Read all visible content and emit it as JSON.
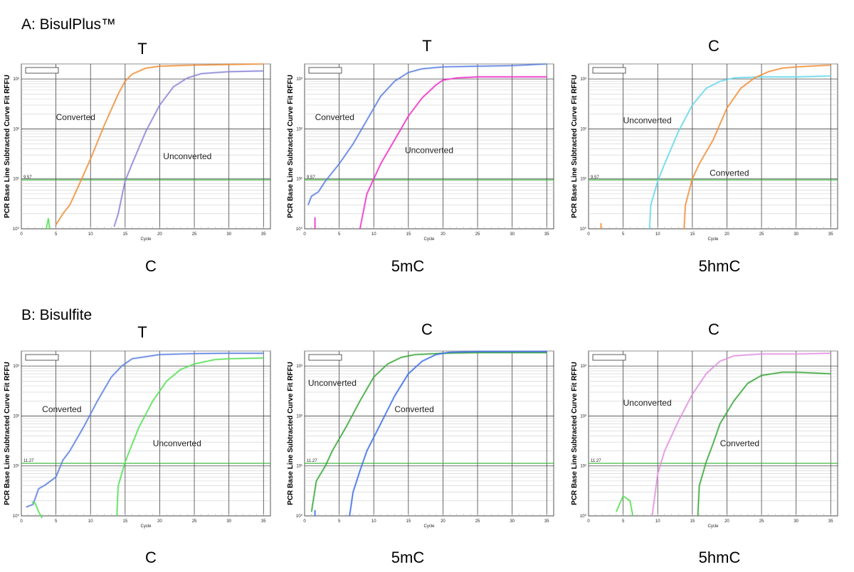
{
  "sections": [
    {
      "title": "A: BisulPlus™"
    },
    {
      "title": "B: Bisulfite"
    }
  ],
  "colors": {
    "orange": "#f0903a",
    "violet_blue": "#8a84d6",
    "blue": "#5b7fe0",
    "magenta": "#ee30c8",
    "cyan": "#66d8ea",
    "green_light": "#55e055",
    "green_dark": "#3aa63a",
    "blue_bright": "#3d6ee8",
    "pink": "#e090e0",
    "threshold": "#2fb52f"
  },
  "chart_data": [
    {
      "type": "line",
      "top_label": "T",
      "bottom_label": "C",
      "ylabel": "PCR Base Line Subtracted Curve Fit RFFU",
      "xlabel": "Cycle",
      "y_scale": "log",
      "xlim": [
        0,
        36
      ],
      "ylim": [
        1,
        2000
      ],
      "x_ticks": [
        "0",
        "5",
        "10",
        "15",
        "20",
        "25",
        "30",
        "35"
      ],
      "y_ticks": [
        "10⁰",
        "10¹",
        "10²",
        "10³"
      ],
      "threshold": {
        "value": 9.57,
        "label": "9.57"
      },
      "series": [
        {
          "color": "orange",
          "points": [
            [
              5,
              1.2
            ],
            [
              6,
              2
            ],
            [
              7,
              3
            ],
            [
              8,
              6
            ],
            [
              10,
              25
            ],
            [
              12,
              120
            ],
            [
              14,
              500
            ],
            [
              15,
              900
            ],
            [
              16,
              1250
            ],
            [
              18,
              1650
            ],
            [
              20,
              1800
            ],
            [
              25,
              1900
            ],
            [
              30,
              1950
            ],
            [
              35,
              2000
            ]
          ]
        },
        {
          "color": "violet_blue",
          "points": [
            [
              13.4,
              1.1
            ],
            [
              14,
              2
            ],
            [
              15,
              9
            ],
            [
              16,
              20
            ],
            [
              18,
              90
            ],
            [
              20,
              300
            ],
            [
              22,
              700
            ],
            [
              24,
              1050
            ],
            [
              26,
              1280
            ],
            [
              30,
              1400
            ],
            [
              35,
              1450
            ]
          ]
        },
        {
          "color": "green_light",
          "points": [
            [
              3.6,
              1
            ],
            [
              3.9,
              1.6
            ],
            [
              4.1,
              1
            ]
          ]
        }
      ],
      "annotations": [
        {
          "text": "Converted",
          "x": 5.0,
          "y": 150
        },
        {
          "text": "Unconverted",
          "x": 20.5,
          "y": 25
        }
      ]
    },
    {
      "type": "line",
      "top_label": "T",
      "bottom_label": "5mC",
      "ylabel": "PCR Base Line Subtracted Curve Fit RFFU",
      "xlabel": "Cycle",
      "y_scale": "log",
      "xlim": [
        0,
        36
      ],
      "ylim": [
        1,
        2000
      ],
      "x_ticks": [
        "0",
        "5",
        "10",
        "15",
        "20",
        "25",
        "30",
        "35"
      ],
      "y_ticks": [
        "10⁰",
        "10¹",
        "10²",
        "10³"
      ],
      "threshold": {
        "value": 9.57,
        "label": "9.57"
      },
      "series": [
        {
          "color": "blue",
          "points": [
            [
              0.5,
              3
            ],
            [
              1,
              4.5
            ],
            [
              2,
              5.5
            ],
            [
              3,
              9
            ],
            [
              5,
              20
            ],
            [
              7,
              50
            ],
            [
              9,
              150
            ],
            [
              11,
              450
            ],
            [
              13,
              900
            ],
            [
              15,
              1350
            ],
            [
              17,
              1600
            ],
            [
              20,
              1750
            ],
            [
              25,
              1800
            ],
            [
              30,
              1850
            ],
            [
              35,
              2000
            ]
          ]
        },
        {
          "color": "magenta",
          "points": [
            [
              8,
              1
            ],
            [
              9,
              5
            ],
            [
              10,
              10
            ],
            [
              11,
              20
            ],
            [
              13,
              60
            ],
            [
              15,
              180
            ],
            [
              17,
              420
            ],
            [
              19,
              760
            ],
            [
              20,
              950
            ],
            [
              22,
              1050
            ],
            [
              25,
              1100
            ],
            [
              30,
              1100
            ],
            [
              35,
              1100
            ]
          ]
        },
        {
          "color": "magenta",
          "points": [
            [
              1.5,
              1
            ],
            [
              1.5,
              1.7
            ]
          ]
        }
      ],
      "annotations": [
        {
          "text": "Converted",
          "x": 1.5,
          "y": 150
        },
        {
          "text": "Unconverted",
          "x": 14.5,
          "y": 33
        }
      ]
    },
    {
      "type": "line",
      "top_label": "C",
      "bottom_label": "5hmC",
      "ylabel": "PCR Base Line Subtracted Curve Fit RFFU",
      "xlabel": "Cycle",
      "y_scale": "log",
      "xlim": [
        0,
        36
      ],
      "ylim": [
        1,
        2000
      ],
      "x_ticks": [
        "0",
        "5",
        "10",
        "15",
        "20",
        "25",
        "30",
        "35"
      ],
      "y_ticks": [
        "10⁰",
        "10¹",
        "10²",
        "10³"
      ],
      "threshold": {
        "value": 9.57,
        "label": "9.57"
      },
      "series": [
        {
          "color": "cyan",
          "points": [
            [
              8.8,
              1
            ],
            [
              9,
              3
            ],
            [
              10,
              9
            ],
            [
              11,
              20
            ],
            [
              13,
              90
            ],
            [
              15,
              300
            ],
            [
              17,
              650
            ],
            [
              19,
              900
            ],
            [
              21,
              1050
            ],
            [
              25,
              1100
            ],
            [
              30,
              1100
            ],
            [
              35,
              1150
            ]
          ]
        },
        {
          "color": "orange",
          "points": [
            [
              13.8,
              1
            ],
            [
              14,
              3
            ],
            [
              15,
              10
            ],
            [
              16,
              20
            ],
            [
              18,
              60
            ],
            [
              20,
              260
            ],
            [
              22,
              650
            ],
            [
              24,
              1050
            ],
            [
              26,
              1400
            ],
            [
              28,
              1650
            ],
            [
              30,
              1750
            ],
            [
              35,
              1900
            ]
          ]
        },
        {
          "color": "orange",
          "points": [
            [
              1.8,
              1
            ],
            [
              1.8,
              1.3
            ]
          ]
        }
      ],
      "annotations": [
        {
          "text": "Unconverted",
          "x": 5.0,
          "y": 130
        },
        {
          "text": "Converted",
          "x": 17.5,
          "y": 11.5
        }
      ]
    },
    {
      "type": "line",
      "top_label": "T",
      "bottom_label": "C",
      "ylabel": "PCR Base Line Subtracted Curve Fit RFFU",
      "xlabel": "Cycle",
      "y_scale": "log",
      "xlim": [
        0,
        36
      ],
      "ylim": [
        1,
        2000
      ],
      "x_ticks": [
        "0",
        "5",
        "10",
        "15",
        "20",
        "25",
        "30",
        "35"
      ],
      "y_ticks": [
        "10⁰",
        "10¹",
        "10²",
        "10³"
      ],
      "threshold": {
        "value": 11.27,
        "label": "11.27"
      },
      "series": [
        {
          "color": "blue",
          "points": [
            [
              0.7,
              1.5
            ],
            [
              1.7,
              1.7
            ],
            [
              2.5,
              3.5
            ],
            [
              3.5,
              4.2
            ],
            [
              5,
              6
            ],
            [
              6,
              13
            ],
            [
              7,
              20
            ],
            [
              9,
              60
            ],
            [
              11,
              200
            ],
            [
              13,
              600
            ],
            [
              14.5,
              1000
            ],
            [
              16,
              1400
            ],
            [
              20,
              1700
            ],
            [
              25,
              1780
            ],
            [
              30,
              1800
            ],
            [
              35,
              1800
            ]
          ]
        },
        {
          "color": "green_light",
          "points": [
            [
              1.5,
              1.9
            ],
            [
              2,
              1.8
            ],
            [
              2.5,
              1.2
            ],
            [
              3,
              0.9
            ]
          ]
        },
        {
          "color": "green_light",
          "points": [
            [
              13.8,
              1
            ],
            [
              14,
              4
            ],
            [
              15,
              12
            ],
            [
              17,
              60
            ],
            [
              19,
              200
            ],
            [
              21,
              500
            ],
            [
              23,
              850
            ],
            [
              25,
              1100
            ],
            [
              28,
              1350
            ],
            [
              30,
              1400
            ],
            [
              35,
              1450
            ]
          ]
        }
      ],
      "annotations": [
        {
          "text": "Converted",
          "x": 3.0,
          "y": 120
        },
        {
          "text": "Unconverted",
          "x": 19.0,
          "y": 25
        }
      ]
    },
    {
      "type": "line",
      "top_label": "C",
      "bottom_label": "5mC",
      "ylabel": "PCR Base Line Subtracted Curve Fit RFFU",
      "xlabel": "Cycle",
      "y_scale": "log",
      "xlim": [
        0,
        36
      ],
      "ylim": [
        1,
        2000
      ],
      "x_ticks": [
        "0",
        "5",
        "10",
        "15",
        "20",
        "25",
        "30",
        "35"
      ],
      "y_ticks": [
        "10⁰",
        "10¹",
        "10²",
        "10³"
      ],
      "threshold": {
        "value": 11.27,
        "label": "11.27"
      },
      "series": [
        {
          "color": "green_dark",
          "points": [
            [
              1,
              1.2
            ],
            [
              1.7,
              5
            ],
            [
              3,
              10
            ],
            [
              4,
              20
            ],
            [
              6,
              60
            ],
            [
              8,
              200
            ],
            [
              10,
              600
            ],
            [
              12,
              1100
            ],
            [
              14,
              1500
            ],
            [
              16,
              1700
            ],
            [
              20,
              1800
            ],
            [
              25,
              1850
            ],
            [
              30,
              1850
            ],
            [
              35,
              1850
            ]
          ]
        },
        {
          "color": "blue_bright",
          "points": [
            [
              6.5,
              1
            ],
            [
              7,
              3
            ],
            [
              8,
              8
            ],
            [
              9,
              20
            ],
            [
              11,
              70
            ],
            [
              13,
              250
            ],
            [
              15,
              700
            ],
            [
              17,
              1250
            ],
            [
              19,
              1700
            ],
            [
              21,
              1900
            ],
            [
              25,
              1950
            ],
            [
              30,
              1950
            ],
            [
              35,
              1950
            ]
          ]
        },
        {
          "color": "blue_bright",
          "points": [
            [
              1.5,
              1
            ],
            [
              1.5,
              1.3
            ]
          ]
        }
      ],
      "annotations": [
        {
          "text": "Unconverted",
          "x": 0.5,
          "y": 400
        },
        {
          "text": "Converted",
          "x": 13.0,
          "y": 120
        }
      ]
    },
    {
      "type": "line",
      "top_label": "C",
      "bottom_label": "5hmC",
      "ylabel": "PCR Base Line Subtracted Curve Fit RFFU",
      "xlabel": "Cycle",
      "y_scale": "log",
      "xlim": [
        0,
        36
      ],
      "ylim": [
        1,
        2000
      ],
      "x_ticks": [
        "0",
        "5",
        "10",
        "15",
        "20",
        "25",
        "30",
        "35"
      ],
      "y_ticks": [
        "10⁰",
        "10¹",
        "10²",
        "10³"
      ],
      "threshold": {
        "value": 11.27,
        "label": "11.27"
      },
      "series": [
        {
          "color": "pink",
          "points": [
            [
              9.2,
              1
            ],
            [
              10,
              7
            ],
            [
              11,
              20
            ],
            [
              13,
              80
            ],
            [
              15,
              270
            ],
            [
              17,
              700
            ],
            [
              19,
              1250
            ],
            [
              21,
              1600
            ],
            [
              25,
              1750
            ],
            [
              30,
              1750
            ],
            [
              35,
              1800
            ]
          ]
        },
        {
          "color": "green_dark",
          "points": [
            [
              15.8,
              1
            ],
            [
              16,
              4
            ],
            [
              17,
              12
            ],
            [
              18,
              28
            ],
            [
              19,
              70
            ],
            [
              21,
              200
            ],
            [
              23,
              450
            ],
            [
              25,
              650
            ],
            [
              28,
              750
            ],
            [
              30,
              750
            ],
            [
              35,
              700
            ]
          ]
        },
        {
          "color": "green_light",
          "points": [
            [
              4,
              1.2
            ],
            [
              5,
              2.5
            ],
            [
              6,
              2
            ],
            [
              6.4,
              1
            ]
          ]
        }
      ],
      "annotations": [
        {
          "text": "Unconverted",
          "x": 5.0,
          "y": 160
        },
        {
          "text": "Converted",
          "x": 19.0,
          "y": 25
        }
      ]
    }
  ]
}
